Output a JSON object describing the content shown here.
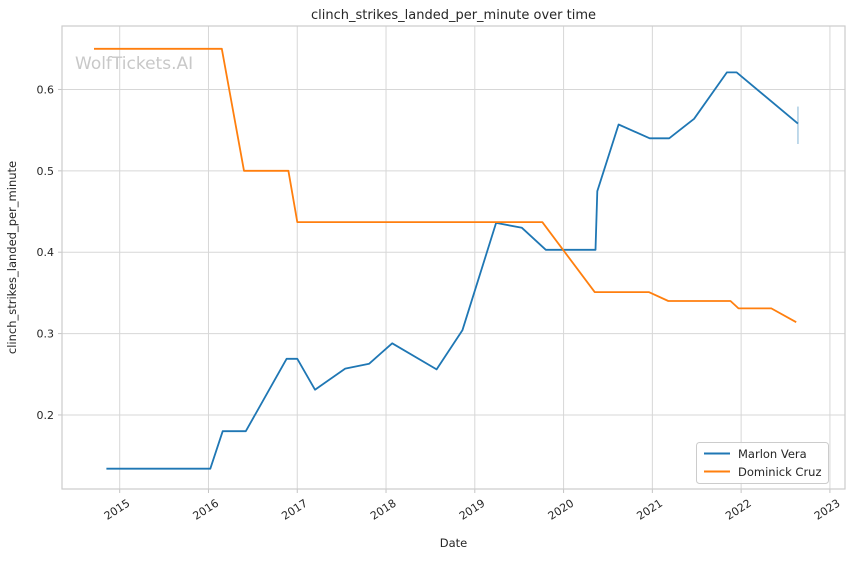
{
  "watermark": "WolfTickets.AI",
  "style_colors": {
    "grid": "#d7d7d7",
    "spine": "#cccccc",
    "tick_mark": "#c4c4c4",
    "tick_text": "#262626",
    "watermark": "#c8c8c8",
    "background": "#ffffff",
    "legend_border": "#cccccc"
  },
  "chart_data": {
    "type": "line",
    "title": "clinch_strikes_landed_per_minute over time",
    "xlabel": "Date",
    "ylabel": "clinch_strikes_landed_per_minute",
    "grid": true,
    "legend_position": "lower right",
    "xlim": [
      2014.35,
      2023.17
    ],
    "ylim": [
      0.109,
      0.678
    ],
    "x_tick_values": [
      2015,
      2016,
      2017,
      2018,
      2019,
      2020,
      2021,
      2022,
      2023
    ],
    "x_tick_labels": [
      "2015",
      "2016",
      "2017",
      "2018",
      "2019",
      "2020",
      "2021",
      "2022",
      "2023"
    ],
    "y_tick_values": [
      0.2,
      0.3,
      0.4,
      0.5,
      0.6
    ],
    "y_tick_labels": [
      "0.2",
      "0.3",
      "0.4",
      "0.5",
      "0.6"
    ],
    "series": [
      {
        "name": "Marlon Vera",
        "color": "#1f77b4",
        "points": [
          [
            2014.85,
            0.134
          ],
          [
            2016.02,
            0.134
          ],
          [
            2016.16,
            0.18
          ],
          [
            2016.42,
            0.18
          ],
          [
            2016.88,
            0.269
          ],
          [
            2017.0,
            0.269
          ],
          [
            2017.2,
            0.231
          ],
          [
            2017.54,
            0.257
          ],
          [
            2017.81,
            0.263
          ],
          [
            2018.07,
            0.288
          ],
          [
            2018.57,
            0.256
          ],
          [
            2018.86,
            0.304
          ],
          [
            2019.24,
            0.436
          ],
          [
            2019.53,
            0.43
          ],
          [
            2019.8,
            0.403
          ],
          [
            2020.36,
            0.403
          ],
          [
            2020.38,
            0.475
          ],
          [
            2020.62,
            0.557
          ],
          [
            2020.97,
            0.54
          ],
          [
            2021.19,
            0.54
          ],
          [
            2021.47,
            0.564
          ],
          [
            2021.84,
            0.621
          ],
          [
            2021.95,
            0.621
          ],
          [
            2022.64,
            0.558
          ]
        ]
      },
      {
        "name": "Dominick Cruz",
        "color": "#ff7f0e",
        "points": [
          [
            2014.71,
            0.65
          ],
          [
            2016.15,
            0.65
          ],
          [
            2016.4,
            0.5
          ],
          [
            2016.9,
            0.5
          ],
          [
            2017.0,
            0.437
          ],
          [
            2019.76,
            0.437
          ],
          [
            2020.35,
            0.351
          ],
          [
            2020.96,
            0.351
          ],
          [
            2021.18,
            0.34
          ],
          [
            2021.88,
            0.34
          ],
          [
            2021.97,
            0.331
          ],
          [
            2022.34,
            0.331
          ],
          [
            2022.62,
            0.314
          ]
        ]
      }
    ],
    "error_bars": [
      {
        "series": "Marlon Vera",
        "x": 2022.64,
        "y_low": 0.533,
        "y_high": 0.579,
        "color": "rgba(31,119,180,0.35)"
      }
    ],
    "legend": {
      "entries": [
        {
          "label": "Marlon Vera",
          "color": "#1f77b4"
        },
        {
          "label": "Dominick Cruz",
          "color": "#ff7f0e"
        }
      ]
    }
  }
}
